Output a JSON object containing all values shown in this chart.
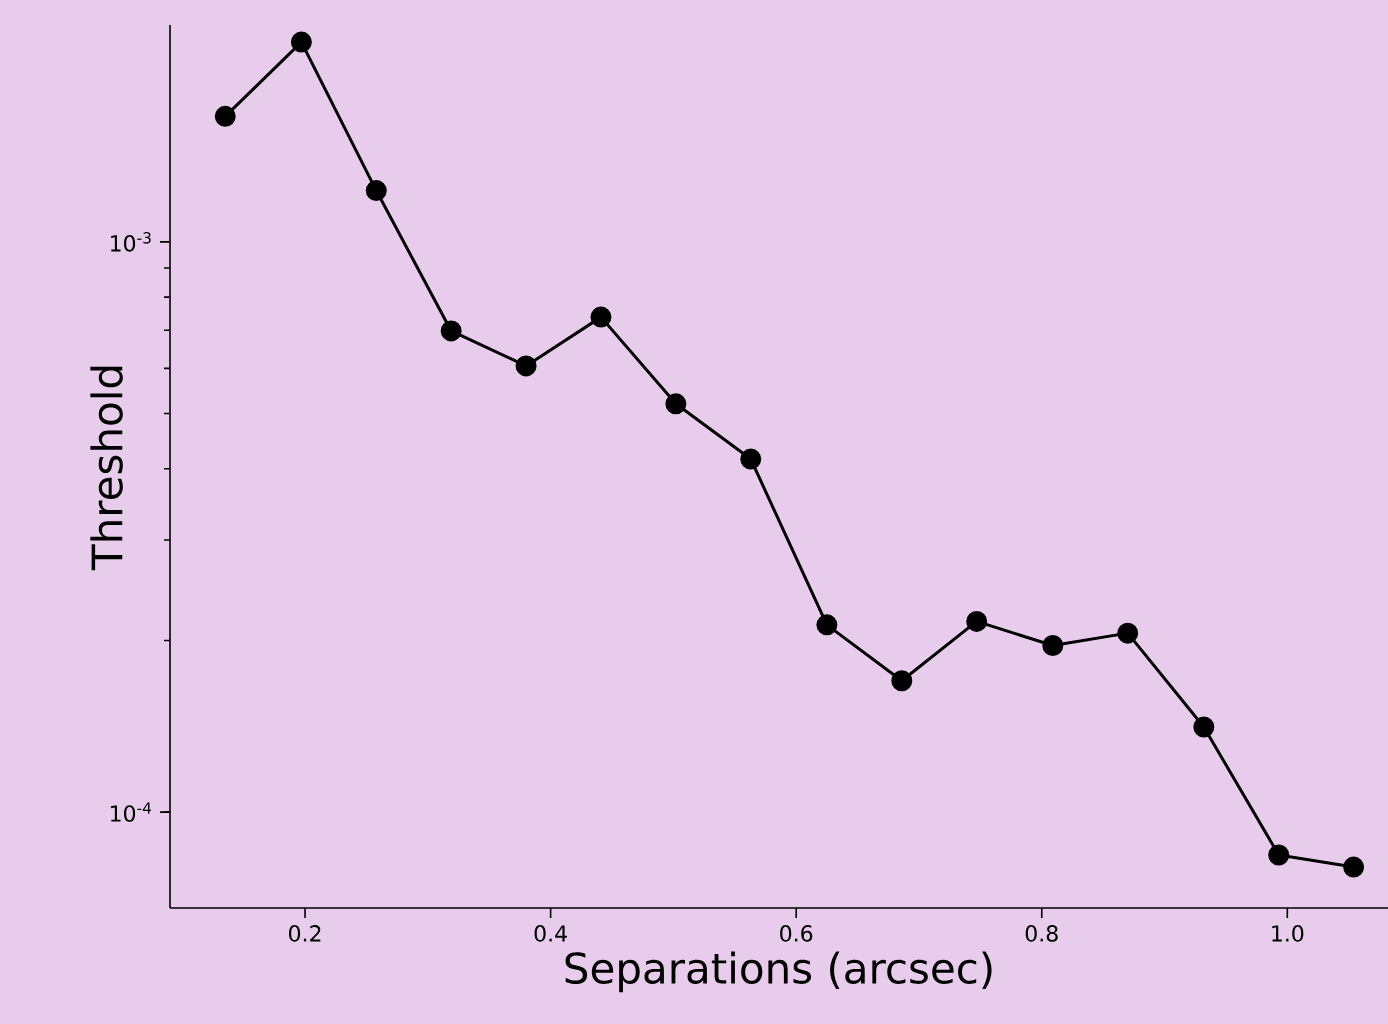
{
  "chart_data": {
    "type": "line",
    "xlabel": "Separations (arcsec)",
    "ylabel": "Threshold",
    "x": [
      0.135,
      0.197,
      0.258,
      0.319,
      0.38,
      0.441,
      0.502,
      0.563,
      0.625,
      0.686,
      0.747,
      0.809,
      0.87,
      0.932,
      0.993,
      1.054
    ],
    "series": [
      {
        "color": "#000000",
        "values": [
          0.00166,
          0.00224,
          0.00123,
          0.000698,
          0.000606,
          0.000738,
          0.00052,
          0.000416,
          0.000213,
          0.00017,
          0.000216,
          0.000196,
          0.000206,
          0.000141,
          8.41e-05,
          8.01e-05
        ]
      }
    ],
    "log": "y",
    "xlim": [
      0.09,
      1.082
    ],
    "ylim": [
      6.79e-05,
      0.0024
    ],
    "xticks": [
      0.2,
      0.4,
      0.6,
      0.8,
      {
        "value": 1.0,
        "label": "1.0"
      }
    ],
    "yticks": [
      {
        "value": 0.0001,
        "label": "10$^{-4}$"
      },
      {
        "value": 0.001,
        "label": "10$^{-3}$"
      }
    ],
    "marker": "circle",
    "line_style": "solid"
  }
}
